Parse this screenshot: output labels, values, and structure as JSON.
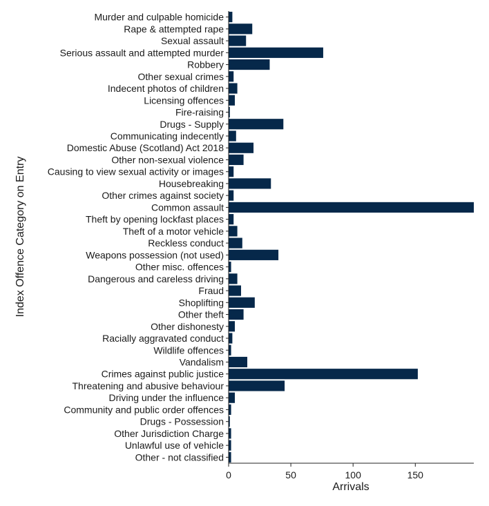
{
  "chart_data": {
    "type": "bar",
    "orientation": "horizontal",
    "xlabel": "Arrivals",
    "ylabel": "Index Offence Category on Entry",
    "xlim": [
      0,
      197
    ],
    "xticks": [
      "0",
      "50",
      "100",
      "150"
    ],
    "grid": false,
    "bar_color": "#06284a",
    "categories": [
      "Murder and culpable homicide",
      "Rape & attempted rape",
      "Sexual assault",
      "Serious assault and attempted murder",
      "Robbery",
      "Other sexual crimes",
      "Indecent photos of children",
      "Licensing offences",
      "Fire-raising",
      "Drugs - Supply",
      "Communicating indecently",
      "Domestic Abuse (Scotland) Act 2018",
      "Other non-sexual violence",
      "Causing to view sexual activity or images",
      "Housebreaking",
      "Other crimes against society",
      "Common assault",
      "Theft by opening lockfast places",
      "Theft of a motor vehicle",
      "Reckless conduct",
      "Weapons possession (not used)",
      "Other misc. offences",
      "Dangerous and careless driving",
      "Fraud",
      "Shoplifting",
      "Other theft",
      "Other dishonesty",
      "Racially aggravated conduct",
      "Wildlife offences",
      "Vandalism",
      "Crimes against public justice",
      "Threatening and abusive behaviour",
      "Driving under the influence",
      "Community and public order offences",
      "Drugs - Possession",
      "Other Jurisdiction Charge",
      "Unlawful use of vehicle",
      "Other - not classified"
    ],
    "values": [
      3,
      19,
      14,
      76,
      33,
      4,
      7,
      5,
      1,
      44,
      6,
      20,
      12,
      4,
      34,
      4,
      197,
      4,
      7,
      11,
      40,
      2,
      7,
      10,
      21,
      12,
      5,
      3,
      2,
      15,
      152,
      45,
      5,
      2,
      1,
      2,
      2,
      2
    ]
  }
}
